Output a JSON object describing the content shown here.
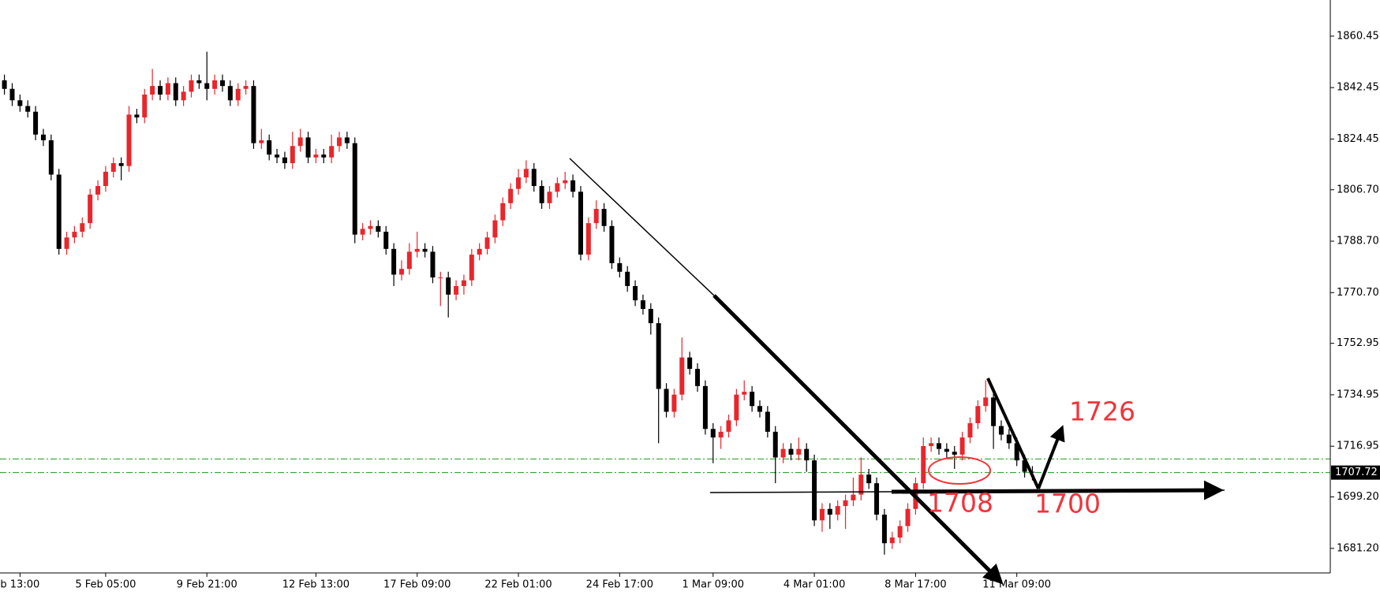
{
  "chart_data": {
    "type": "candlestick",
    "categories": [
      null,
      null,
      "b 13:00",
      null,
      null,
      null,
      null,
      null,
      null,
      null,
      null,
      null,
      null,
      "5 Feb 05:00",
      null,
      null,
      null,
      null,
      null,
      null,
      null,
      null,
      null,
      null,
      null,
      null,
      "9 Feb 21:00",
      null,
      null,
      null,
      null,
      null,
      null,
      null,
      null,
      null,
      null,
      null,
      null,
      null,
      "12 Feb 13:00",
      null,
      null,
      null,
      null,
      null,
      null,
      null,
      null,
      null,
      null,
      null,
      null,
      "17 Feb 09:00",
      null,
      null,
      null,
      null,
      null,
      null,
      null,
      null,
      null,
      null,
      null,
      null,
      "22 Feb 01:00",
      null,
      null,
      null,
      null,
      null,
      null,
      null,
      null,
      null,
      null,
      null,
      null,
      "24 Feb 17:00",
      null,
      null,
      null,
      null,
      null,
      null,
      null,
      null,
      null,
      null,
      null,
      "1 Mar 09:00",
      null,
      null,
      null,
      null,
      null,
      null,
      null,
      null,
      null,
      null,
      null,
      null,
      "4 Mar 01:00",
      null,
      null,
      null,
      null,
      null,
      null,
      null,
      null,
      null,
      null,
      null,
      null,
      "8 Mar 17:00",
      null,
      null,
      null,
      null,
      null,
      null,
      null,
      null,
      null,
      null,
      null,
      null,
      "11 Mar 09:00",
      null,
      null
    ],
    "open": [
      1845,
      1842,
      1838,
      1836,
      1834,
      1826,
      1824,
      1812,
      1786,
      1790,
      1792,
      1795,
      1805,
      1808,
      1813,
      1816,
      1815,
      1833,
      1832,
      1840,
      1843,
      1840,
      1844,
      1838,
      1841,
      1845,
      1844,
      1842,
      1845,
      1843,
      1838,
      1842,
      1843,
      1823,
      1824,
      1819,
      1818,
      1816,
      1822,
      1825,
      1818,
      1819,
      1818,
      1822,
      1825,
      1823,
      1791,
      1793,
      1794,
      1792,
      1786,
      1777,
      1779,
      1785,
      1786,
      1785,
      1776,
      1776,
      1770,
      1773,
      1775,
      1784,
      1786,
      1790,
      1796,
      1802,
      1807,
      1811,
      1814,
      1808,
      1802,
      1806,
      1809,
      1810,
      1806,
      1784,
      1795,
      1800,
      1794,
      1781,
      1778,
      1773,
      1768,
      1765,
      1760,
      1737,
      1729,
      1735,
      1748,
      1744,
      1738,
      1723,
      1720,
      1722,
      1726,
      1735,
      1736,
      1731,
      1729,
      1722,
      1713,
      1716,
      1714,
      1716,
      1712,
      1691,
      1695,
      1693,
      1696,
      1698,
      1700,
      1707,
      1704,
      1693,
      1683,
      1685,
      1689,
      1695,
      1704,
      1717,
      1718,
      1716,
      1715,
      1714,
      1720,
      1725,
      1731,
      1734,
      1724,
      1721,
      1718,
      1712,
      1708
    ],
    "high": [
      1847,
      1844,
      1840,
      1838,
      1836,
      1828,
      1826,
      1814,
      1792,
      1794,
      1797,
      1807,
      1810,
      1815,
      1818,
      1818,
      1836,
      1835,
      1842,
      1849,
      1845,
      1846,
      1846,
      1843,
      1847,
      1847,
      1855,
      1847,
      1847,
      1845,
      1844,
      1845,
      1845,
      1828,
      1826,
      1821,
      1820,
      1827,
      1828,
      1827,
      1821,
      1821,
      1826,
      1827,
      1827,
      1825,
      1795,
      1796,
      1796,
      1794,
      1788,
      1782,
      1788,
      1792,
      1788,
      1787,
      1778,
      1778,
      1775,
      1777,
      1786,
      1788,
      1792,
      1798,
      1804,
      1809,
      1814,
      1817,
      1816,
      1810,
      1808,
      1811,
      1813,
      1812,
      1808,
      1797,
      1803,
      1802,
      1796,
      1783,
      1780,
      1775,
      1770,
      1767,
      1762,
      1739,
      1737,
      1755,
      1750,
      1746,
      1740,
      1725,
      1724,
      1728,
      1737,
      1740,
      1738,
      1733,
      1731,
      1724,
      1718,
      1718,
      1720,
      1718,
      1714,
      1697,
      1697,
      1698,
      1700,
      1706,
      1713,
      1709,
      1706,
      1695,
      1687,
      1691,
      1697,
      1706,
      1720,
      1720,
      1720,
      1718,
      1717,
      1722,
      1727,
      1733,
      1740,
      1736,
      1726,
      1723,
      1720,
      1714,
      1710
    ],
    "low": [
      1840,
      1836,
      1834,
      1832,
      1824,
      1822,
      1810,
      1784,
      1784,
      1788,
      1790,
      1793,
      1803,
      1806,
      1811,
      1810,
      1813,
      1830,
      1830,
      1838,
      1838,
      1838,
      1836,
      1836,
      1839,
      1842,
      1838,
      1840,
      1841,
      1836,
      1836,
      1840,
      1821,
      1821,
      1817,
      1816,
      1814,
      1814,
      1820,
      1816,
      1816,
      1816,
      1816,
      1820,
      1821,
      1788,
      1789,
      1791,
      1790,
      1784,
      1773,
      1775,
      1777,
      1783,
      1783,
      1774,
      1766,
      1762,
      1768,
      1770,
      1773,
      1782,
      1784,
      1788,
      1794,
      1800,
      1805,
      1809,
      1806,
      1800,
      1800,
      1804,
      1807,
      1804,
      1782,
      1782,
      1793,
      1792,
      1779,
      1776,
      1771,
      1766,
      1763,
      1756,
      1718,
      1727,
      1727,
      1733,
      1742,
      1736,
      1721,
      1711,
      1716,
      1720,
      1724,
      1733,
      1729,
      1727,
      1720,
      1704,
      1711,
      1712,
      1712,
      1708,
      1689,
      1687,
      1688,
      1691,
      1688,
      1696,
      1698,
      1702,
      1691,
      1679,
      1681,
      1683,
      1687,
      1693,
      1702,
      1715,
      1714,
      1713,
      1709,
      1712,
      1718,
      1723,
      1729,
      1716,
      1719,
      1716,
      1710,
      1706,
      1705
    ],
    "close": [
      1842,
      1838,
      1836,
      1834,
      1826,
      1824,
      1812,
      1786,
      1790,
      1792,
      1795,
      1805,
      1808,
      1813,
      1816,
      1815,
      1833,
      1832,
      1840,
      1843,
      1840,
      1844,
      1838,
      1841,
      1845,
      1844,
      1842,
      1845,
      1843,
      1838,
      1842,
      1843,
      1823,
      1824,
      1819,
      1818,
      1816,
      1822,
      1825,
      1818,
      1819,
      1818,
      1822,
      1825,
      1823,
      1791,
      1793,
      1794,
      1792,
      1786,
      1777,
      1779,
      1785,
      1786,
      1785,
      1776,
      1776,
      1770,
      1773,
      1775,
      1784,
      1786,
      1790,
      1796,
      1802,
      1807,
      1811,
      1814,
      1808,
      1802,
      1806,
      1809,
      1810,
      1806,
      1784,
      1795,
      1800,
      1794,
      1781,
      1778,
      1773,
      1768,
      1765,
      1760,
      1737,
      1729,
      1735,
      1748,
      1744,
      1738,
      1723,
      1720,
      1722,
      1726,
      1735,
      1736,
      1731,
      1729,
      1722,
      1713,
      1716,
      1714,
      1716,
      1712,
      1691,
      1695,
      1693,
      1696,
      1698,
      1700,
      1707,
      1704,
      1693,
      1683,
      1685,
      1689,
      1695,
      1704,
      1717,
      1718,
      1716,
      1715,
      1714,
      1720,
      1725,
      1731,
      1734,
      1724,
      1721,
      1718,
      1712,
      1708,
      1707.72
    ],
    "up_color": "#e8262c",
    "down_color": "#000000",
    "ylim": [
      1672.6,
      1873.1
    ],
    "yticks": [
      1860.45,
      1842.45,
      1824.45,
      {
        "value": 1806.7,
        "label": "1806.70"
      },
      {
        "value": 1788.7,
        "label": "1788.70"
      },
      {
        "value": 1770.7,
        "label": "1770.70"
      },
      1752.95,
      1734.95,
      1716.95,
      {
        "value": 1699.2,
        "label": "1699.20"
      },
      {
        "value": 1681.2,
        "label": "1681.20"
      }
    ],
    "levels": [
      1712.5,
      1707.72
    ],
    "level_color": "#1a9a1a",
    "last_price": 1707.72,
    "annotations": [
      "1726",
      "1708",
      "1700"
    ],
    "annotation_color": "#f0343a"
  }
}
